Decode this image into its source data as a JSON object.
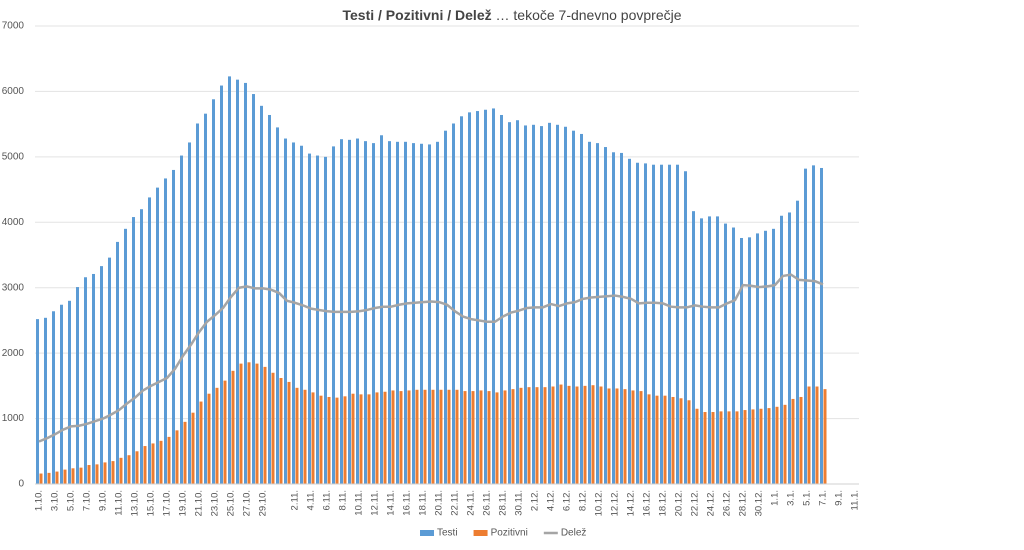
{
  "chart_data": {
    "type": "bar_line",
    "title": [
      "Testi / Pozitivni / Delež",
      " … tekoče 7-dnevno povprečje"
    ],
    "categories": [
      "1.10.",
      null,
      "3.10.",
      null,
      "5.10.",
      null,
      "7.10.",
      null,
      "9.10.",
      null,
      "11.10.",
      null,
      "13.10.",
      null,
      "15.10.",
      null,
      "17.10.",
      null,
      "19.10.",
      null,
      "21.10.",
      null,
      "23.10.",
      null,
      "25.10.",
      null,
      "27.10.",
      null,
      "29.10.",
      null,
      null,
      null,
      "2.11.",
      null,
      "4.11.",
      null,
      "6.11.",
      null,
      "8.11.",
      null,
      "10.11.",
      null,
      "12.11.",
      null,
      "14.11.",
      null,
      "16.11.",
      null,
      "18.11.",
      null,
      "20.11.",
      null,
      "22.11.",
      null,
      "24.11.",
      null,
      "26.11.",
      null,
      "28.11.",
      null,
      "30.11.",
      null,
      "2.12.",
      null,
      "4.12.",
      null,
      "6.12.",
      null,
      "8.12.",
      null,
      "10.12.",
      null,
      "12.12.",
      null,
      "14.12.",
      null,
      "16.12.",
      null,
      "18.12.",
      null,
      "20.12.",
      null,
      "22.12.",
      null,
      "24.12.",
      null,
      "26.12.",
      null,
      "28.12.",
      null,
      "30.12.",
      null,
      "1.1.",
      null,
      "3.1.",
      null,
      "5.1.",
      null,
      "7.1.",
      null,
      "9.1.",
      null,
      "11.1."
    ],
    "series": [
      {
        "name": "Testi",
        "type": "bar",
        "color": "#5b9bd5",
        "values": [
          2520,
          2540,
          2640,
          2740,
          2800,
          3010,
          3160,
          3210,
          3330,
          3460,
          3700,
          3900,
          4080,
          4200,
          4380,
          4530,
          4670,
          4800,
          5020,
          5220,
          5510,
          5660,
          5880,
          6090,
          6230,
          6180,
          6130,
          5960,
          5780,
          5640,
          5450,
          5280,
          5220,
          5170,
          5050,
          5020,
          5000,
          5160,
          5270,
          5260,
          5280,
          5240,
          5210,
          5330,
          5240,
          5230,
          5230,
          5210,
          5200,
          5190,
          5230,
          5400,
          5510,
          5620,
          5680,
          5700,
          5720,
          5740,
          5640,
          5530,
          5560,
          5480,
          5490,
          5470,
          5520,
          5490,
          5460,
          5400,
          5350,
          5230,
          5210,
          5150,
          5070,
          5060,
          4970,
          4910,
          4900,
          4880,
          4880,
          4880,
          4880,
          4780,
          4170,
          4060,
          4090,
          4090,
          3980,
          3920,
          3760,
          3770,
          3830,
          3870,
          3900,
          4100,
          4150,
          4330,
          4820,
          4870,
          4830,
          null,
          null,
          null,
          null
        ]
      },
      {
        "name": "Pozitivni",
        "type": "bar",
        "color": "#ed7d31",
        "values": [
          160,
          170,
          190,
          220,
          240,
          250,
          290,
          300,
          330,
          350,
          400,
          440,
          500,
          580,
          620,
          660,
          720,
          820,
          950,
          1090,
          1260,
          1380,
          1470,
          1580,
          1730,
          1840,
          1860,
          1840,
          1790,
          1700,
          1620,
          1560,
          1470,
          1440,
          1400,
          1350,
          1330,
          1320,
          1340,
          1380,
          1370,
          1370,
          1400,
          1410,
          1430,
          1420,
          1430,
          1440,
          1440,
          1440,
          1440,
          1440,
          1440,
          1420,
          1420,
          1430,
          1420,
          1400,
          1430,
          1450,
          1470,
          1480,
          1480,
          1480,
          1490,
          1520,
          1500,
          1490,
          1500,
          1510,
          1490,
          1460,
          1460,
          1450,
          1430,
          1420,
          1370,
          1350,
          1350,
          1330,
          1310,
          1280,
          1150,
          1100,
          1100,
          1110,
          1110,
          1110,
          1130,
          1140,
          1150,
          1160,
          1180,
          1210,
          1300,
          1330,
          1490,
          1490,
          1450,
          null,
          null,
          null,
          null
        ]
      },
      {
        "name": "Delež",
        "type": "line",
        "color": "#a5a5a5",
        "values": [
          650,
          700,
          760,
          830,
          880,
          890,
          920,
          960,
          1000,
          1060,
          1130,
          1230,
          1320,
          1430,
          1500,
          1560,
          1620,
          1760,
          1960,
          2130,
          2320,
          2480,
          2580,
          2690,
          2860,
          3000,
          3020,
          2990,
          2990,
          2970,
          2920,
          2800,
          2770,
          2730,
          2680,
          2660,
          2640,
          2630,
          2630,
          2630,
          2640,
          2660,
          2690,
          2710,
          2710,
          2740,
          2760,
          2770,
          2780,
          2790,
          2780,
          2740,
          2640,
          2560,
          2520,
          2500,
          2480,
          2480,
          2560,
          2620,
          2650,
          2690,
          2700,
          2700,
          2750,
          2720,
          2760,
          2780,
          2830,
          2850,
          2860,
          2870,
          2880,
          2860,
          2830,
          2760,
          2770,
          2770,
          2760,
          2710,
          2700,
          2700,
          2730,
          2710,
          2700,
          2700,
          2760,
          2810,
          3040,
          3030,
          3010,
          3020,
          3040,
          3180,
          3200,
          3120,
          3110,
          3100,
          3050,
          null,
          null,
          null,
          null
        ]
      }
    ],
    "ylim": [
      0,
      7000
    ],
    "yticks": [
      0,
      1000,
      2000,
      3000,
      4000,
      5000,
      6000,
      7000
    ],
    "grid": true,
    "legend": "bottom"
  }
}
